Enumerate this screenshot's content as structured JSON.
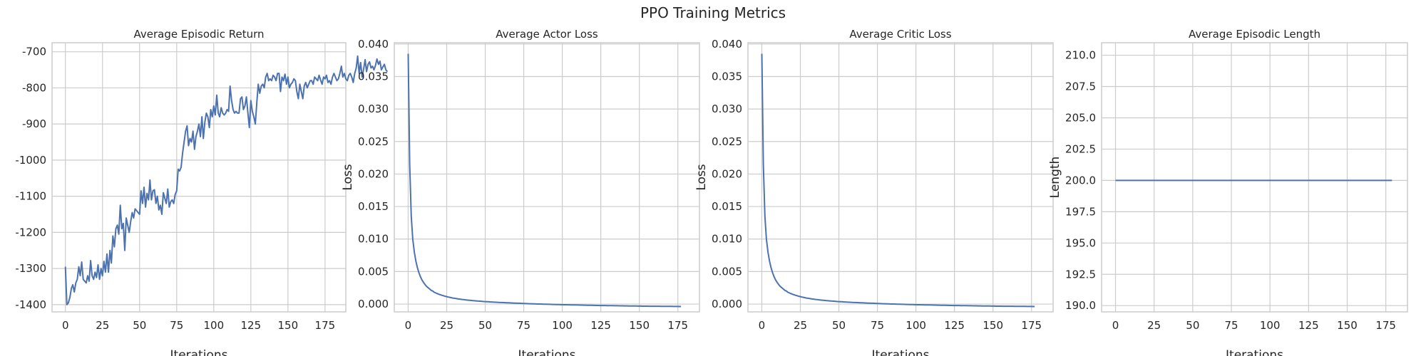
{
  "figure": {
    "suptitle": "PPO Training Metrics"
  },
  "colors": {
    "line": "#4c72b0",
    "grid": "#cccccc",
    "frame": "#cccccc",
    "background": "#ffffff"
  },
  "chart_data": [
    {
      "type": "line",
      "title": "Average Episodic Return",
      "xlabel": "Iterations",
      "ylabel": "",
      "xlim": [
        -9,
        189
      ],
      "ylim": [
        -1420,
        -675
      ],
      "xticks": [
        0,
        25,
        50,
        75,
        100,
        125,
        150,
        175
      ],
      "yticks": [
        -1400,
        -1300,
        -1200,
        -1100,
        -1000,
        -900,
        -800,
        -700
      ],
      "ytick_labels": [
        "-1400",
        "-1300",
        "-1200",
        "-1100",
        "-1000",
        "-900",
        "-800",
        "-700"
      ],
      "grid": true,
      "series": [
        {
          "x_start": 0,
          "x_step": 1,
          "values": [
            -1295,
            -1400,
            -1395,
            -1380,
            -1355,
            -1345,
            -1365,
            -1340,
            -1330,
            -1295,
            -1320,
            -1282,
            -1330,
            -1335,
            -1340,
            -1320,
            -1335,
            -1278,
            -1320,
            -1330,
            -1310,
            -1325,
            -1290,
            -1330,
            -1300,
            -1320,
            -1280,
            -1310,
            -1260,
            -1310,
            -1250,
            -1285,
            -1210,
            -1240,
            -1190,
            -1180,
            -1205,
            -1125,
            -1190,
            -1175,
            -1250,
            -1160,
            -1180,
            -1200,
            -1170,
            -1145,
            -1160,
            -1135,
            -1140,
            -1145,
            -1150,
            -1085,
            -1120,
            -1075,
            -1130,
            -1092,
            -1110,
            -1055,
            -1110,
            -1085,
            -1082,
            -1120,
            -1100,
            -1138,
            -1125,
            -1150,
            -1090,
            -1105,
            -1120,
            -1080,
            -1130,
            -1115,
            -1110,
            -1120,
            -1095,
            -1085,
            -1025,
            -1030,
            -1020,
            -980,
            -950,
            -920,
            -905,
            -960,
            -940,
            -950,
            -920,
            -970,
            -935,
            -920,
            -900,
            -935,
            -880,
            -940,
            -895,
            -870,
            -880,
            -910,
            -860,
            -880,
            -850,
            -875,
            -820,
            -870,
            -880,
            -855,
            -870,
            -875,
            -870,
            -860,
            -865,
            -795,
            -835,
            -860,
            -870,
            -865,
            -870,
            -870,
            -830,
            -825,
            -860,
            -850,
            -825,
            -870,
            -910,
            -835,
            -865,
            -880,
            -900,
            -840,
            -790,
            -815,
            -795,
            -790,
            -800,
            -770,
            -760,
            -780,
            -775,
            -780,
            -765,
            -770,
            -780,
            -760,
            -760,
            -810,
            -770,
            -780,
            -762,
            -790,
            -770,
            -800,
            -790,
            -785,
            -775,
            -780,
            -810,
            -830,
            -790,
            -810,
            -830,
            -795,
            -785,
            -800,
            -790,
            -780,
            -780,
            -790,
            -770,
            -775,
            -780,
            -765,
            -778,
            -790,
            -770,
            -775,
            -765,
            -785,
            -780,
            -790,
            -770,
            -760,
            -770,
            -780,
            -775,
            -760,
            -740,
            -770,
            -760,
            -775,
            -780,
            -765,
            -760,
            -770,
            -785,
            -760,
            -745,
            -712,
            -760,
            -730,
            -770,
            -748,
            -722,
            -755,
            -735,
            -728,
            -745,
            -740,
            -750,
            -738,
            -720,
            -735,
            -726,
            -750,
            -742,
            -735,
            -750,
            -755
          ]
        }
      ]
    },
    {
      "type": "line",
      "title": "Average Actor Loss",
      "xlabel": "Iterations",
      "ylabel": "Loss",
      "xlim": [
        -9,
        189
      ],
      "ylim": [
        -0.0012,
        0.0402
      ],
      "xticks": [
        0,
        25,
        50,
        75,
        100,
        125,
        150,
        175
      ],
      "yticks": [
        0.0,
        0.005,
        0.01,
        0.015,
        0.02,
        0.025,
        0.03,
        0.035,
        0.04
      ],
      "ytick_labels": [
        "0.000",
        "0.005",
        "0.010",
        "0.015",
        "0.020",
        "0.025",
        "0.030",
        "0.035",
        "0.040"
      ],
      "grid": true,
      "series": [
        {
          "x_start": 0,
          "x_step": 1,
          "values": [
            0.0385,
            0.0215,
            0.0135,
            0.01,
            0.008,
            0.0066,
            0.0056,
            0.0048,
            0.0042,
            0.0037,
            0.0033,
            0.003,
            0.0027,
            0.0025,
            0.0023,
            0.0021,
            0.002,
            0.0018,
            0.0017,
            0.0016,
            0.0015,
            0.00142,
            0.00134,
            0.00127,
            0.0012,
            0.00114,
            0.00108,
            0.00103,
            0.00098,
            0.00093,
            0.00089,
            0.00085,
            0.00081,
            0.00077,
            0.00074,
            0.00071,
            0.00068,
            0.00065,
            0.00062,
            0.0006,
            0.00057,
            0.00055,
            0.00053,
            0.00051,
            0.00049,
            0.00047,
            0.00045,
            0.00043,
            0.00041,
            0.00039,
            0.00038,
            0.00036,
            0.00035,
            0.00033,
            0.00032,
            0.0003,
            0.00029,
            0.00028,
            0.00027,
            0.00025,
            0.00024,
            0.00023,
            0.00022,
            0.00021,
            0.0002,
            0.00019,
            0.00018,
            0.00017,
            0.00016,
            0.00015,
            0.00014,
            0.00013,
            0.00012,
            0.00011,
            0.0001,
            9e-05,
            8e-05,
            7e-05,
            6e-05,
            5e-05,
            5e-05,
            4e-05,
            3e-05,
            2e-05,
            1e-05,
            0.0,
            0.0,
            -1e-05,
            -2e-05,
            -2e-05,
            -3e-05,
            -4e-05,
            -4e-05,
            -5e-05,
            -6e-05,
            -6e-05,
            -7e-05,
            -8e-05,
            -8e-05,
            -9e-05,
            -0.0001,
            -0.0001,
            -0.00011,
            -0.00011,
            -0.00012,
            -0.00012,
            -0.00013,
            -0.00013,
            -0.00014,
            -0.00014,
            -0.00015,
            -0.00015,
            -0.00016,
            -0.00016,
            -0.00017,
            -0.00017,
            -0.00018,
            -0.00018,
            -0.00019,
            -0.00019,
            -0.0002,
            -0.0002,
            -0.00021,
            -0.00021,
            -0.00022,
            -0.00022,
            -0.00022,
            -0.00023,
            -0.00023,
            -0.00024,
            -0.00024,
            -0.00024,
            -0.00025,
            -0.00025,
            -0.00026,
            -0.00026,
            -0.00026,
            -0.00027,
            -0.00027,
            -0.00027,
            -0.00028,
            -0.00028,
            -0.00028,
            -0.00029,
            -0.00029,
            -0.00029,
            -0.0003,
            -0.0003,
            -0.0003,
            -0.00031,
            -0.00031,
            -0.00031,
            -0.00032,
            -0.00032,
            -0.00032,
            -0.00032,
            -0.00033,
            -0.00033,
            -0.00033,
            -0.00033,
            -0.00034,
            -0.00034,
            -0.00034,
            -0.00034,
            -0.00035,
            -0.00035,
            -0.00035,
            -0.00035,
            -0.00036,
            -0.00036,
            -0.00036,
            -0.00036,
            -0.00037,
            -0.00037,
            -0.00037,
            -0.00037,
            -0.00038,
            -0.00038
          ]
        }
      ]
    },
    {
      "type": "line",
      "title": "Average Critic Loss",
      "xlabel": "Iterations",
      "ylabel": "Loss",
      "xlim": [
        -9,
        189
      ],
      "ylim": [
        -0.0012,
        0.0402
      ],
      "xticks": [
        0,
        25,
        50,
        75,
        100,
        125,
        150,
        175
      ],
      "yticks": [
        0.0,
        0.005,
        0.01,
        0.015,
        0.02,
        0.025,
        0.03,
        0.035,
        0.04
      ],
      "ytick_labels": [
        "0.000",
        "0.005",
        "0.010",
        "0.015",
        "0.020",
        "0.025",
        "0.030",
        "0.035",
        "0.040"
      ],
      "grid": true,
      "series": [
        {
          "x_start": 0,
          "x_step": 1,
          "values": [
            0.0385,
            0.0215,
            0.0135,
            0.01,
            0.008,
            0.0066,
            0.0056,
            0.0048,
            0.0042,
            0.0037,
            0.0033,
            0.003,
            0.0027,
            0.0025,
            0.0023,
            0.0021,
            0.002,
            0.0018,
            0.0017,
            0.0016,
            0.0015,
            0.00142,
            0.00134,
            0.00127,
            0.0012,
            0.00114,
            0.00108,
            0.00103,
            0.00098,
            0.00093,
            0.00089,
            0.00085,
            0.00081,
            0.00077,
            0.00074,
            0.00071,
            0.00068,
            0.00065,
            0.00062,
            0.0006,
            0.00057,
            0.00055,
            0.00053,
            0.00051,
            0.00049,
            0.00047,
            0.00045,
            0.00043,
            0.00041,
            0.00039,
            0.00038,
            0.00036,
            0.00035,
            0.00033,
            0.00032,
            0.0003,
            0.00029,
            0.00028,
            0.00027,
            0.00025,
            0.00024,
            0.00023,
            0.00022,
            0.00021,
            0.0002,
            0.00019,
            0.00018,
            0.00017,
            0.00016,
            0.00015,
            0.00014,
            0.00013,
            0.00012,
            0.00011,
            0.0001,
            9e-05,
            8e-05,
            7e-05,
            6e-05,
            5e-05,
            5e-05,
            4e-05,
            3e-05,
            2e-05,
            1e-05,
            0.0,
            0.0,
            -1e-05,
            -2e-05,
            -2e-05,
            -3e-05,
            -4e-05,
            -4e-05,
            -5e-05,
            -6e-05,
            -6e-05,
            -7e-05,
            -8e-05,
            -8e-05,
            -9e-05,
            -0.0001,
            -0.0001,
            -0.00011,
            -0.00011,
            -0.00012,
            -0.00012,
            -0.00013,
            -0.00013,
            -0.00014,
            -0.00014,
            -0.00015,
            -0.00015,
            -0.00016,
            -0.00016,
            -0.00017,
            -0.00017,
            -0.00018,
            -0.00018,
            -0.00019,
            -0.00019,
            -0.0002,
            -0.0002,
            -0.00021,
            -0.00021,
            -0.00022,
            -0.00022,
            -0.00022,
            -0.00023,
            -0.00023,
            -0.00024,
            -0.00024,
            -0.00024,
            -0.00025,
            -0.00025,
            -0.00026,
            -0.00026,
            -0.00026,
            -0.00027,
            -0.00027,
            -0.00027,
            -0.00028,
            -0.00028,
            -0.00028,
            -0.00029,
            -0.00029,
            -0.00029,
            -0.0003,
            -0.0003,
            -0.0003,
            -0.00031,
            -0.00031,
            -0.00031,
            -0.00032,
            -0.00032,
            -0.00032,
            -0.00032,
            -0.00033,
            -0.00033,
            -0.00033,
            -0.00033,
            -0.00034,
            -0.00034,
            -0.00034,
            -0.00034,
            -0.00035,
            -0.00035,
            -0.00035,
            -0.00035,
            -0.00036,
            -0.00036,
            -0.00036,
            -0.00036,
            -0.00037,
            -0.00037,
            -0.00037,
            -0.00037,
            -0.00038,
            -0.00038
          ]
        }
      ]
    },
    {
      "type": "line",
      "title": "Average Episodic Length",
      "xlabel": "Iterations",
      "ylabel": "Length",
      "xlim": [
        -9,
        189
      ],
      "ylim": [
        189.5,
        211.0
      ],
      "xticks": [
        0,
        25,
        50,
        75,
        100,
        125,
        150,
        175
      ],
      "yticks": [
        190.0,
        192.5,
        195.0,
        197.5,
        200.0,
        202.5,
        205.0,
        207.5,
        210.0
      ],
      "ytick_labels": [
        "190.0",
        "192.5",
        "195.0",
        "197.5",
        "200.0",
        "202.5",
        "205.0",
        "207.5",
        "210.0"
      ],
      "grid": true,
      "series": [
        {
          "x_start": 0,
          "x_step": 179,
          "values": [
            200.0,
            200.0
          ]
        }
      ]
    }
  ]
}
